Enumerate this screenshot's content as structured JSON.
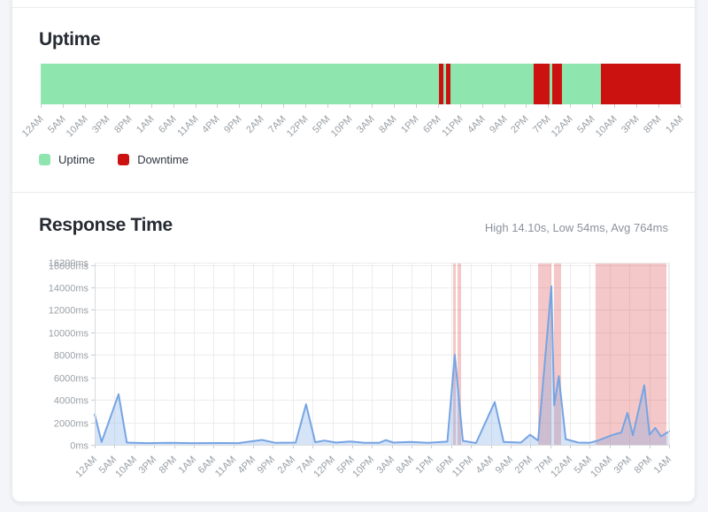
{
  "page": {
    "background_color": "#f3f5f8",
    "card_color": "#ffffff"
  },
  "uptime_section": {
    "title": "Uptime",
    "legend": [
      {
        "label": "Uptime",
        "color": "#8ee6ae"
      },
      {
        "label": "Downtime",
        "color": "#cc1111"
      }
    ],
    "chart_data": {
      "type": "status-bar",
      "up_color": "#8ee6ae",
      "down_color": "#cc1111",
      "segments": [
        {
          "status": "up",
          "width_pct": 62.3
        },
        {
          "status": "down",
          "width_pct": 0.7
        },
        {
          "status": "up",
          "width_pct": 0.4
        },
        {
          "status": "down",
          "width_pct": 0.7
        },
        {
          "status": "up",
          "width_pct": 12.9
        },
        {
          "status": "down",
          "width_pct": 2.5
        },
        {
          "status": "up",
          "width_pct": 0.5
        },
        {
          "status": "down",
          "width_pct": 1.5
        },
        {
          "status": "up",
          "width_pct": 6.0
        },
        {
          "status": "down",
          "width_pct": 12.5
        }
      ],
      "x_tick_labels": [
        "12AM",
        "5AM",
        "10AM",
        "3PM",
        "8PM",
        "1AM",
        "6AM",
        "11AM",
        "4PM",
        "9PM",
        "2AM",
        "7AM",
        "12PM",
        "5PM",
        "10PM",
        "3AM",
        "8AM",
        "1PM",
        "6PM",
        "11PM",
        "4AM",
        "9AM",
        "2PM",
        "7PM",
        "12AM",
        "5AM",
        "10AM",
        "3PM",
        "8PM",
        "1AM"
      ]
    }
  },
  "response_section": {
    "title": "Response Time",
    "stats_summary": "High 14.10s, Low 54ms, Avg 764ms",
    "chart_data": {
      "type": "area",
      "title": "Response Time",
      "high": "14.10s",
      "low": "54ms",
      "avg": "764ms",
      "ylim_ms": [
        0,
        16200
      ],
      "y_tick_labels": [
        "0ms",
        "2000ms",
        "4000ms",
        "6000ms",
        "8000ms",
        "10000ms",
        "12000ms",
        "14000ms",
        "16000ms"
      ],
      "y_axis_overlap_label": "16200ms",
      "x_tick_labels": [
        "12AM",
        "5AM",
        "10AM",
        "3PM",
        "8PM",
        "1AM",
        "6AM",
        "11AM",
        "4PM",
        "9PM",
        "2AM",
        "7AM",
        "12PM",
        "5PM",
        "10PM",
        "3AM",
        "8AM",
        "1PM",
        "6PM",
        "11PM",
        "4AM",
        "9AM",
        "2PM",
        "7PM",
        "12AM",
        "5AM",
        "10AM",
        "3PM",
        "8PM",
        "1AM"
      ],
      "line_color": "#76a4e3",
      "fill_color": "rgba(118,164,227,0.30)",
      "downtime_band_color": "rgba(215,58,58,0.28)",
      "downtime_bands_frac": [
        [
          0.624,
          0.6287
        ],
        [
          0.6317,
          0.6379
        ],
        [
          0.772,
          0.795
        ],
        [
          0.7996,
          0.812
        ],
        [
          0.872,
          0.9954
        ]
      ],
      "points_frac_ms": [
        [
          0.0,
          2700
        ],
        [
          0.012,
          250
        ],
        [
          0.0416,
          4500
        ],
        [
          0.056,
          200
        ],
        [
          0.09,
          150
        ],
        [
          0.13,
          170
        ],
        [
          0.17,
          150
        ],
        [
          0.21,
          160
        ],
        [
          0.25,
          150
        ],
        [
          0.291,
          430
        ],
        [
          0.315,
          170
        ],
        [
          0.35,
          200
        ],
        [
          0.368,
          3600
        ],
        [
          0.384,
          230
        ],
        [
          0.4,
          380
        ],
        [
          0.42,
          200
        ],
        [
          0.445,
          300
        ],
        [
          0.47,
          180
        ],
        [
          0.495,
          170
        ],
        [
          0.507,
          420
        ],
        [
          0.52,
          200
        ],
        [
          0.55,
          250
        ],
        [
          0.58,
          180
        ],
        [
          0.614,
          280
        ],
        [
          0.627,
          8000
        ],
        [
          0.641,
          350
        ],
        [
          0.664,
          160
        ],
        [
          0.6964,
          3800
        ],
        [
          0.712,
          250
        ],
        [
          0.742,
          200
        ],
        [
          0.758,
          900
        ],
        [
          0.772,
          380
        ],
        [
          0.795,
          14100
        ],
        [
          0.8,
          3500
        ],
        [
          0.808,
          6100
        ],
        [
          0.82,
          500
        ],
        [
          0.842,
          200
        ],
        [
          0.862,
          180
        ],
        [
          0.875,
          350
        ],
        [
          0.9,
          850
        ],
        [
          0.917,
          1100
        ],
        [
          0.9276,
          2850
        ],
        [
          0.937,
          850
        ],
        [
          0.9568,
          5300
        ],
        [
          0.966,
          900
        ],
        [
          0.976,
          1500
        ],
        [
          0.986,
          750
        ],
        [
          1.0,
          1200
        ]
      ]
    }
  }
}
